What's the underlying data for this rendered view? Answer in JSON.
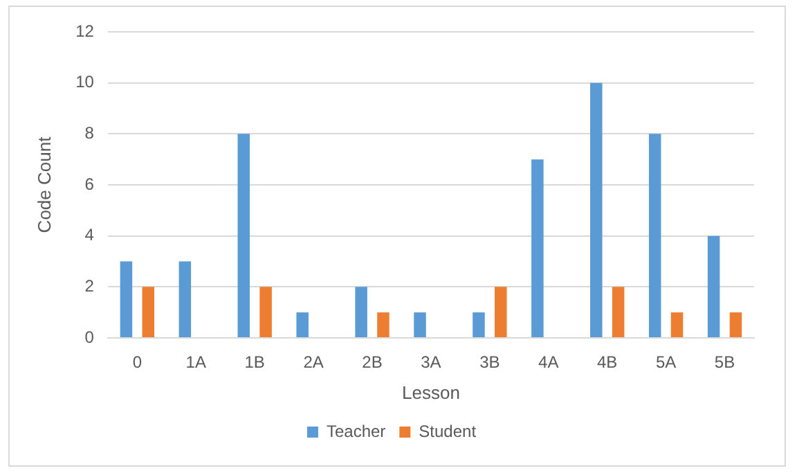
{
  "chart_data": {
    "type": "bar",
    "xlabel": "Lesson",
    "ylabel": "Code Count",
    "categories": [
      "0",
      "1A",
      "1B",
      "2A",
      "2B",
      "3A",
      "3B",
      "4A",
      "4B",
      "5A",
      "5B"
    ],
    "series": [
      {
        "name": "Teacher",
        "color": "#5b9bd5",
        "values": [
          3,
          3,
          8,
          1,
          2,
          1,
          1,
          7,
          10,
          8,
          4
        ]
      },
      {
        "name": "Student",
        "color": "#ed7d31",
        "values": [
          2,
          0,
          2,
          0,
          1,
          0,
          2,
          0,
          2,
          1,
          1
        ]
      }
    ],
    "ylim": [
      0,
      12
    ],
    "yticks": [
      0,
      2,
      4,
      6,
      8,
      10,
      12
    ],
    "grid": "y",
    "legend": "bottom"
  }
}
